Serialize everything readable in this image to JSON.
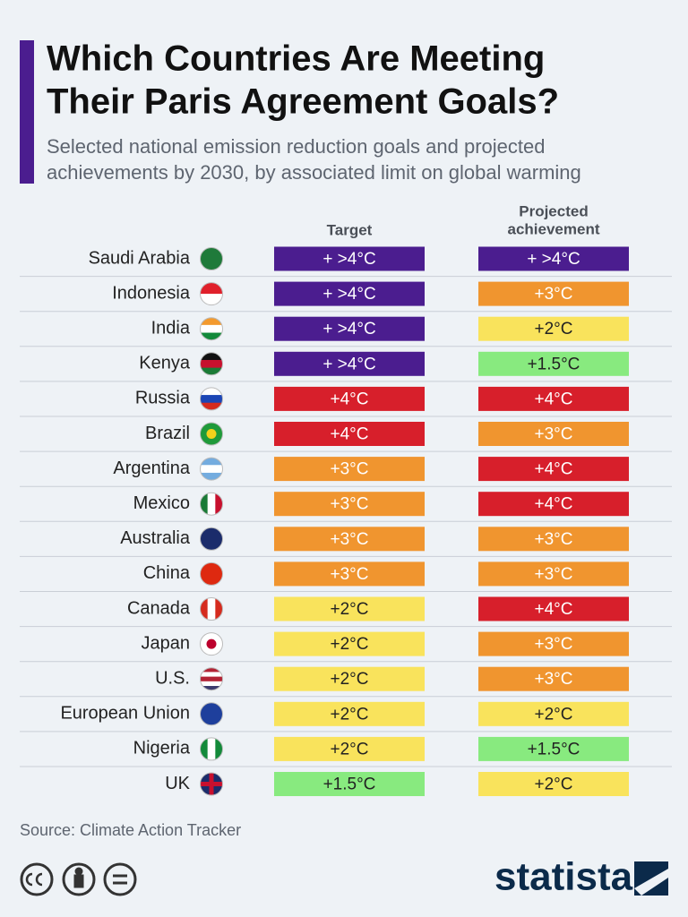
{
  "header": {
    "title": [
      "Which Countries Are Meeting",
      "Their Paris Agreement Goals?"
    ],
    "subtitle": [
      "Selected national emission reduction goals and projected",
      "achievements by 2030, by associated limit on global warming"
    ]
  },
  "table": {
    "columns": [
      [
        "Target"
      ],
      [
        "Projected",
        "achievement"
      ]
    ],
    "rows": [
      [
        "Saudi Arabia",
        "+ >4°C",
        "+ >4°C"
      ],
      [
        "Indonesia",
        "+ >4°C",
        "+3°C"
      ],
      [
        "India",
        "+ >4°C",
        "+2°C"
      ],
      [
        "Kenya",
        "+ >4°C",
        "+1.5°C"
      ],
      [
        "Russia",
        "+4°C",
        "+4°C"
      ],
      [
        "Brazil",
        "+4°C",
        "+3°C"
      ],
      [
        "Argentina",
        "+3°C",
        "+4°C"
      ],
      [
        "Mexico",
        "+3°C",
        "+4°C"
      ],
      [
        "Australia",
        "+3°C",
        "+3°C"
      ],
      [
        "China",
        "+3°C",
        "+3°C"
      ],
      [
        "Canada",
        "+2°C",
        "+4°C"
      ],
      [
        "Japan",
        "+2°C",
        "+3°C"
      ],
      [
        "U.S.",
        "+2°C",
        "+3°C"
      ],
      [
        "European Union",
        "+2°C",
        "+2°C"
      ],
      [
        "Nigeria",
        "+2°C",
        "+1.5°C"
      ],
      [
        "UK",
        "+1.5°C",
        "+2°C"
      ]
    ],
    "colors": {
      "+ >4°C": "#4b1d8f",
      "+4°C": "#d71f2b",
      "+3°C": "#f0952f",
      "+2°C": "#f9e35c",
      "+1.5°C": "#88ea7f"
    }
  },
  "footer": {
    "source": "Source: Climate Action Tracker",
    "brand": "statista"
  }
}
